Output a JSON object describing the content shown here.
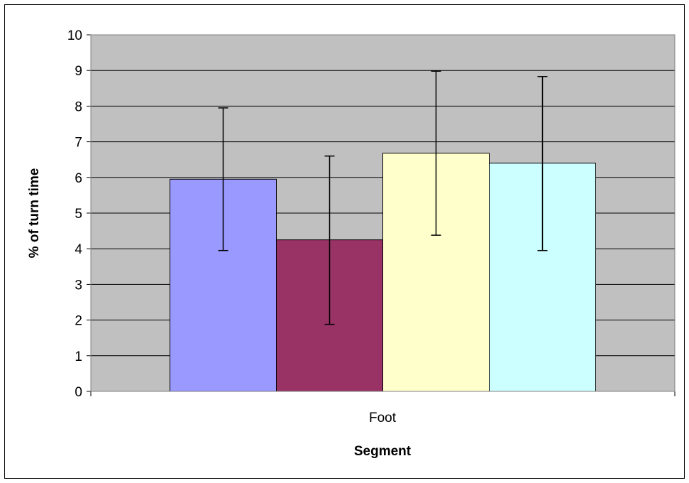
{
  "chart_data": {
    "type": "bar",
    "title": "",
    "xlabel": "Segment",
    "ylabel": "% of turn time",
    "categories": [
      "Foot"
    ],
    "ylim": [
      0,
      10
    ],
    "yticks": [
      "0",
      "1",
      "2",
      "3",
      "4",
      "5",
      "6",
      "7",
      "8",
      "9",
      "10"
    ],
    "grid": true,
    "legend": "none",
    "series": [
      {
        "values": [
          5.95
        ],
        "error_low": [
          3.95
        ],
        "error_high": [
          7.95
        ],
        "color": "#9999ff"
      },
      {
        "values": [
          4.25
        ],
        "error_low": [
          1.88
        ],
        "error_high": [
          6.6
        ],
        "color": "#993366"
      },
      {
        "values": [
          6.68
        ],
        "error_low": [
          4.38
        ],
        "error_high": [
          8.98
        ],
        "color": "#ffffcc"
      },
      {
        "values": [
          6.4
        ],
        "error_low": [
          3.95
        ],
        "error_high": [
          8.83
        ],
        "color": "#ccffff"
      }
    ],
    "plot_background": "#c0c0c0"
  }
}
